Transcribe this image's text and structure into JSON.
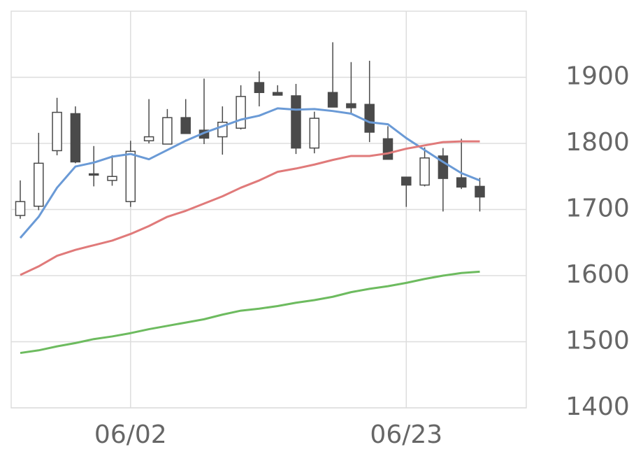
{
  "chart_data": {
    "type": "candlestick",
    "categories": [
      null,
      null,
      null,
      null,
      null,
      null,
      "06/02",
      null,
      null,
      null,
      null,
      null,
      null,
      null,
      null,
      null,
      null,
      null,
      null,
      null,
      null,
      "06/23",
      null,
      null,
      null,
      null
    ],
    "candles": {
      "open": [
        1691,
        1705,
        1789,
        1845,
        1754,
        1744,
        1712,
        1804,
        1799,
        1839,
        1820,
        1810,
        1823,
        1892,
        1877,
        1872,
        1793,
        1877,
        1860,
        1859,
        1807,
        1749,
        1737,
        1781,
        1748,
        1735
      ],
      "high": [
        1744,
        1816,
        1869,
        1856,
        1796,
        1782,
        1804,
        1867,
        1852,
        1867,
        1898,
        1856,
        1888,
        1909,
        1888,
        1890,
        1848,
        1953,
        1923,
        1925,
        1826,
        1749,
        1794,
        1793,
        1807,
        1748
      ],
      "low": [
        1686,
        1699,
        1782,
        1770,
        1735,
        1736,
        1704,
        1800,
        1799,
        1815,
        1799,
        1783,
        1821,
        1856,
        1873,
        1784,
        1785,
        1855,
        1845,
        1802,
        1776,
        1704,
        1735,
        1697,
        1731,
        1697
      ],
      "close": [
        1712,
        1770,
        1847,
        1772,
        1752,
        1750,
        1788,
        1810,
        1839,
        1815,
        1808,
        1832,
        1871,
        1877,
        1873,
        1793,
        1838,
        1855,
        1854,
        1817,
        1776,
        1737,
        1778,
        1747,
        1734,
        1719
      ],
      "up_color": "#ffffff",
      "down_color": "#4a4a4a",
      "edge_color": "#4a4a4a"
    },
    "lines": [
      {
        "color": "#6a9ad6",
        "values": [
          1657,
          1689,
          1733,
          1765,
          1771,
          1780,
          1784,
          1776,
          1790,
          1804,
          1816,
          1826,
          1836,
          1842,
          1853,
          1851,
          1852,
          1849,
          1845,
          1832,
          1829,
          1808,
          1790,
          1772,
          1755,
          1744
        ]
      },
      {
        "color": "#e07a7a",
        "values": [
          1601,
          1614,
          1630,
          1639,
          1646,
          1653,
          1663,
          1675,
          1689,
          1698,
          1709,
          1720,
          1733,
          1744,
          1757,
          1762,
          1768,
          1775,
          1781,
          1781,
          1785,
          1792,
          1797,
          1802,
          1803,
          1803
        ]
      },
      {
        "color": "#6dbb5f",
        "values": [
          1483,
          1487,
          1493,
          1498,
          1504,
          1508,
          1513,
          1519,
          1524,
          1529,
          1534,
          1541,
          1547,
          1550,
          1554,
          1559,
          1563,
          1568,
          1575,
          1580,
          1584,
          1589,
          1595,
          1600,
          1604,
          1606
        ]
      }
    ],
    "ylim": [
      1400,
      2000
    ],
    "yticks": [
      1400,
      1500,
      1600,
      1700,
      1800,
      1900
    ],
    "grid": true
  }
}
